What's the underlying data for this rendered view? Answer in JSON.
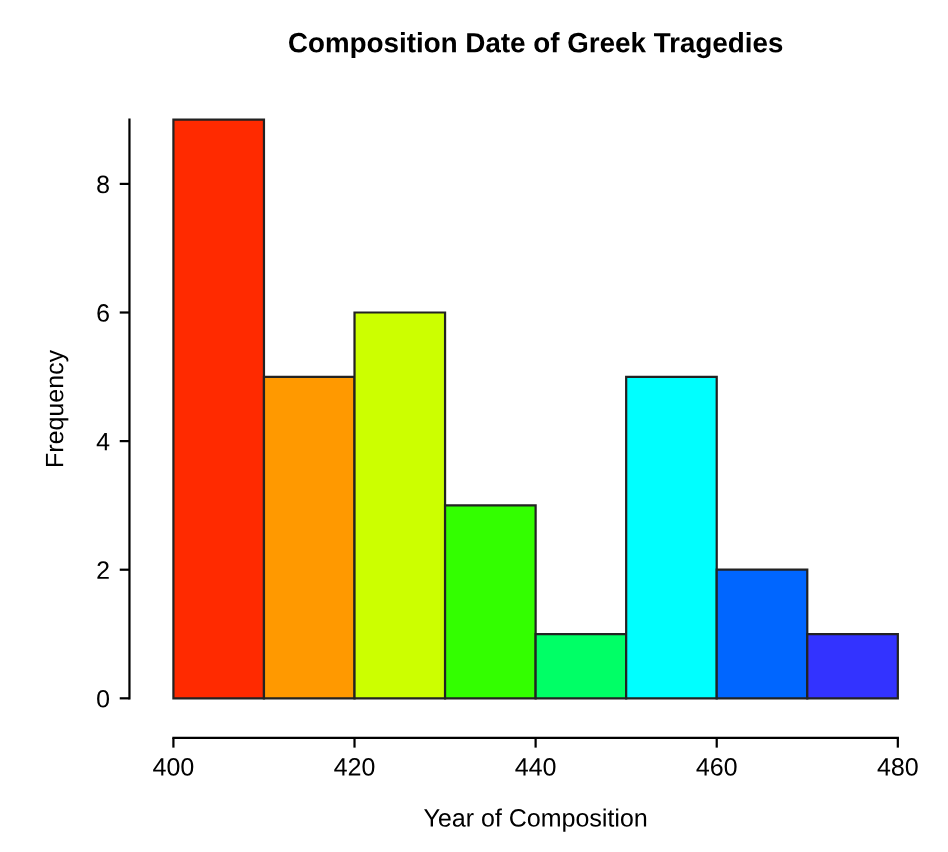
{
  "chart_data": {
    "type": "histogram",
    "title": "Composition Date of Greek Tragedies",
    "xlabel": "Year of Composition",
    "ylabel": "Frequency",
    "bins": [
      400,
      410,
      420,
      430,
      440,
      450,
      460,
      470,
      480
    ],
    "values": [
      9,
      5,
      6,
      3,
      1,
      5,
      2,
      1
    ],
    "colors": [
      "#ff2a00",
      "#ff9900",
      "#ccff00",
      "#33ff00",
      "#00ff66",
      "#00ffff",
      "#0066ff",
      "#3333ff"
    ],
    "xlim": [
      400,
      480
    ],
    "ylim": [
      0,
      9
    ],
    "xticks": [
      400,
      420,
      440,
      460,
      480
    ],
    "yticks": [
      0,
      2,
      4,
      6,
      8
    ],
    "grid": false
  }
}
